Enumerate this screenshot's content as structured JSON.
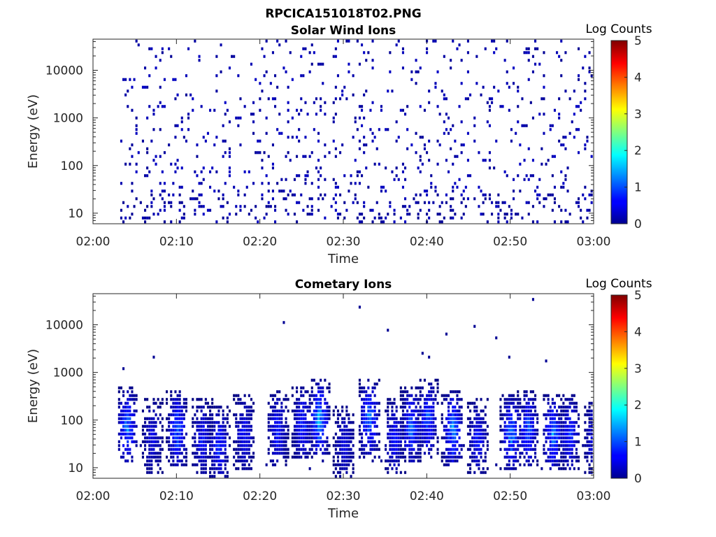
{
  "figure": {
    "title": "RPCICA151018T02.PNG"
  },
  "chart_data": [
    {
      "type": "heatmap",
      "title": "Solar Wind Ions",
      "xlabel": "Time",
      "ylabel": "Energy (eV)",
      "xlim": [
        "02:00",
        "03:00"
      ],
      "x_ticks": [
        "02:00",
        "02:10",
        "02:20",
        "02:30",
        "02:40",
        "02:50",
        "03:00"
      ],
      "y_scale": "log",
      "ylim": [
        6,
        45000
      ],
      "y_ticks": [
        "10",
        "100",
        "1000",
        "10000"
      ],
      "data_start": "02:03",
      "colorbar": {
        "label": "Log Counts",
        "range": [
          0,
          5
        ],
        "ticks": [
          "0",
          "1",
          "2",
          "3",
          "4",
          "5"
        ],
        "colormap": "jet"
      },
      "description_level": "sparse low counts (mostly 0-0.5) scattered over 6 eV - 30 keV from 02:03 to 03:00; denser columns at low energies below 100 eV"
    },
    {
      "type": "heatmap",
      "title": "Cometary Ions",
      "xlabel": "Time",
      "ylabel": "Energy (eV)",
      "xlim": [
        "02:00",
        "03:00"
      ],
      "x_ticks": [
        "02:00",
        "02:10",
        "02:20",
        "02:30",
        "02:40",
        "02:50",
        "03:00"
      ],
      "y_scale": "log",
      "ylim": [
        6,
        45000
      ],
      "y_ticks": [
        "10",
        "100",
        "1000",
        "10000"
      ],
      "data_start": "02:03",
      "colorbar": {
        "label": "Log Counts",
        "range": [
          0,
          5
        ],
        "ticks": [
          "0",
          "1",
          "2",
          "3",
          "4",
          "5"
        ],
        "colormap": "jet"
      },
      "bursts": [
        {
          "time": "02:04",
          "peak_energy": 70,
          "peak_level": 1.4
        },
        {
          "time": "02:07",
          "peak_energy": 40,
          "peak_level": 0.6
        },
        {
          "time": "02:10",
          "peak_energy": 60,
          "peak_level": 1.3
        },
        {
          "time": "02:13",
          "peak_energy": 40,
          "peak_level": 0.8
        },
        {
          "time": "02:15",
          "peak_energy": 30,
          "peak_level": 1.0
        },
        {
          "time": "02:18",
          "peak_energy": 50,
          "peak_level": 0.8
        },
        {
          "time": "02:22",
          "peak_energy": 60,
          "peak_level": 0.9
        },
        {
          "time": "02:25",
          "peak_energy": 80,
          "peak_level": 1.0
        },
        {
          "time": "02:27",
          "peak_energy": 100,
          "peak_level": 1.7
        },
        {
          "time": "02:30",
          "peak_energy": 30,
          "peak_level": 0.6
        },
        {
          "time": "02:33",
          "peak_energy": 100,
          "peak_level": 1.5
        },
        {
          "time": "02:36",
          "peak_energy": 40,
          "peak_level": 0.8
        },
        {
          "time": "02:38",
          "peak_energy": 70,
          "peak_level": 1.3
        },
        {
          "time": "02:40",
          "peak_energy": 100,
          "peak_level": 1.2
        },
        {
          "time": "02:43",
          "peak_energy": 60,
          "peak_level": 1.5
        },
        {
          "time": "02:46",
          "peak_energy": 40,
          "peak_level": 0.8
        },
        {
          "time": "02:50",
          "peak_energy": 50,
          "peak_level": 1.4
        },
        {
          "time": "02:52",
          "peak_energy": 60,
          "peak_level": 1.2
        },
        {
          "time": "02:55",
          "peak_energy": 50,
          "peak_level": 1.4
        },
        {
          "time": "02:57",
          "peak_energy": 50,
          "peak_level": 1.0
        },
        {
          "time": "03:00",
          "peak_energy": 40,
          "peak_level": 0.8
        }
      ]
    }
  ]
}
